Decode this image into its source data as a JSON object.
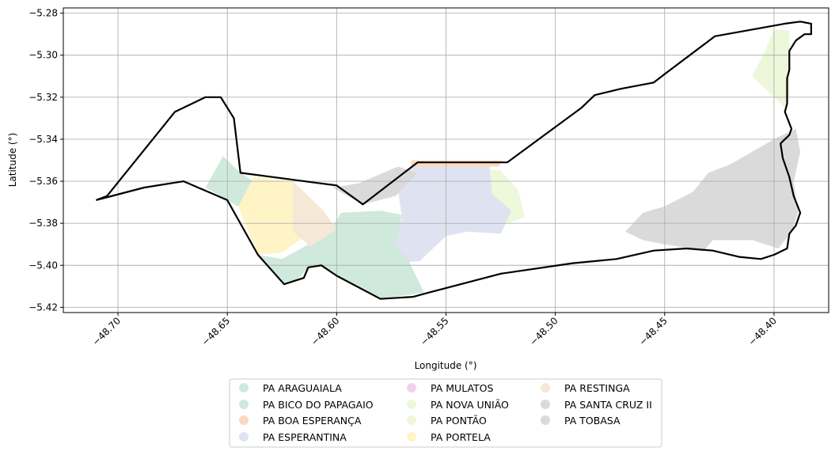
{
  "chart_data": {
    "type": "map",
    "xlabel": "Longitude (°)",
    "ylabel": "Latitude (°)",
    "xlim": [
      -48.725,
      -48.375
    ],
    "ylim": [
      -5.4225,
      -5.2775
    ],
    "grid": true,
    "x_ticks": [
      {
        "value": -48.7,
        "label": "−48.70"
      },
      {
        "value": -48.65,
        "label": "−48.65"
      },
      {
        "value": -48.6,
        "label": "−48.60"
      },
      {
        "value": -48.55,
        "label": "−48.55"
      },
      {
        "value": -48.5,
        "label": "−48.50"
      },
      {
        "value": -48.45,
        "label": "−48.45"
      },
      {
        "value": -48.4,
        "label": "−48.40"
      }
    ],
    "y_ticks": [
      {
        "value": -5.28,
        "label": "−5.28"
      },
      {
        "value": -5.3,
        "label": "−5.30"
      },
      {
        "value": -5.32,
        "label": "−5.32"
      },
      {
        "value": -5.34,
        "label": "−5.34"
      },
      {
        "value": -5.36,
        "label": "−5.36"
      },
      {
        "value": -5.38,
        "label": "−5.38"
      },
      {
        "value": -5.4,
        "label": "−5.40"
      },
      {
        "value": -5.42,
        "label": "−5.42"
      }
    ],
    "legend_position": "bottom-center",
    "legend": [
      {
        "label": "PA ARAGUAIALA",
        "color": "#cfeadd"
      },
      {
        "label": "PA BICO DO PAPAGAIO",
        "color": "#cfeadd"
      },
      {
        "label": "PA BOA ESPERANÇA",
        "color": "#fbd9c0"
      },
      {
        "label": "PA ESPERANTINA",
        "color": "#dfe3f1"
      },
      {
        "label": "PA MULATOS",
        "color": "#f2d1eb"
      },
      {
        "label": "PA NOVA UNIÃO",
        "color": "#edf7da"
      },
      {
        "label": "PA PONTÃO",
        "color": "#eef8da"
      },
      {
        "label": "PA PORTELA",
        "color": "#fff4c6"
      },
      {
        "label": "PA RESTINGA",
        "color": "#f6e8d6"
      },
      {
        "label": "PA SANTA CRUZ II",
        "color": "#dadada"
      },
      {
        "label": "PA TOBASA",
        "color": "#dadada"
      }
    ],
    "boundary": [
      [
        -48.71,
        -5.369
      ],
      [
        -48.705,
        -5.367
      ],
      [
        -48.674,
        -5.327
      ],
      [
        -48.66,
        -5.32
      ],
      [
        -48.653,
        -5.32
      ],
      [
        -48.647,
        -5.33
      ],
      [
        -48.644,
        -5.356
      ],
      [
        -48.6,
        -5.362
      ],
      [
        -48.588,
        -5.371
      ],
      [
        -48.563,
        -5.351
      ],
      [
        -48.522,
        -5.351
      ],
      [
        -48.488,
        -5.325
      ],
      [
        -48.482,
        -5.319
      ],
      [
        -48.47,
        -5.316
      ],
      [
        -48.455,
        -5.313
      ],
      [
        -48.45,
        -5.309
      ],
      [
        -48.427,
        -5.291
      ],
      [
        -48.395,
        -5.285
      ],
      [
        -48.388,
        -5.284
      ],
      [
        -48.383,
        -5.285
      ],
      [
        -48.383,
        -5.29
      ],
      [
        -48.386,
        -5.29
      ],
      [
        -48.39,
        -5.293
      ],
      [
        -48.393,
        -5.298
      ],
      [
        -48.393,
        -5.307
      ],
      [
        -48.394,
        -5.311
      ],
      [
        -48.394,
        -5.323
      ],
      [
        -48.395,
        -5.327
      ],
      [
        -48.392,
        -5.335
      ],
      [
        -48.393,
        -5.338
      ],
      [
        -48.397,
        -5.342
      ],
      [
        -48.396,
        -5.349
      ],
      [
        -48.393,
        -5.358
      ],
      [
        -48.391,
        -5.367
      ],
      [
        -48.388,
        -5.375
      ],
      [
        -48.39,
        -5.381
      ],
      [
        -48.393,
        -5.385
      ],
      [
        -48.394,
        -5.392
      ],
      [
        -48.4,
        -5.395
      ],
      [
        -48.406,
        -5.397
      ],
      [
        -48.416,
        -5.396
      ],
      [
        -48.428,
        -5.393
      ],
      [
        -48.44,
        -5.392
      ],
      [
        -48.455,
        -5.393
      ],
      [
        -48.472,
        -5.397
      ],
      [
        -48.492,
        -5.399
      ],
      [
        -48.525,
        -5.404
      ],
      [
        -48.558,
        -5.413
      ],
      [
        -48.565,
        -5.415
      ],
      [
        -48.58,
        -5.416
      ],
      [
        -48.6,
        -5.405
      ],
      [
        -48.607,
        -5.4
      ],
      [
        -48.613,
        -5.401
      ],
      [
        -48.615,
        -5.406
      ],
      [
        -48.618,
        -5.407
      ],
      [
        -48.624,
        -5.409
      ],
      [
        -48.636,
        -5.395
      ],
      [
        -48.65,
        -5.369
      ],
      [
        -48.67,
        -5.36
      ],
      [
        -48.688,
        -5.363
      ],
      [
        -48.71,
        -5.369
      ]
    ],
    "regions": [
      {
        "legend_index": 9,
        "color": "#dadada",
        "points": [
          [
            -48.437,
            -5.365
          ],
          [
            -48.43,
            -5.356
          ],
          [
            -48.42,
            -5.352
          ],
          [
            -48.4,
            -5.34
          ],
          [
            -48.39,
            -5.335
          ],
          [
            -48.388,
            -5.346
          ],
          [
            -48.391,
            -5.36
          ],
          [
            -48.389,
            -5.375
          ],
          [
            -48.392,
            -5.384
          ],
          [
            -48.398,
            -5.392
          ],
          [
            -48.41,
            -5.388
          ],
          [
            -48.428,
            -5.388
          ],
          [
            -48.432,
            -5.393
          ],
          [
            -48.45,
            -5.39
          ],
          [
            -48.46,
            -5.388
          ],
          [
            -48.468,
            -5.384
          ],
          [
            -48.46,
            -5.375
          ],
          [
            -48.45,
            -5.372
          ]
        ]
      },
      {
        "legend_index": 5,
        "color": "#edf7da",
        "points": [
          [
            -48.405,
            -5.3
          ],
          [
            -48.4,
            -5.288
          ],
          [
            -48.393,
            -5.288
          ],
          [
            -48.393,
            -5.3
          ],
          [
            -48.393,
            -5.32
          ],
          [
            -48.395,
            -5.325
          ],
          [
            -48.402,
            -5.318
          ],
          [
            -48.41,
            -5.31
          ]
        ]
      },
      {
        "legend_index": 6,
        "color": "#eef8da",
        "points": [
          [
            -48.532,
            -5.354
          ],
          [
            -48.525,
            -5.355
          ],
          [
            -48.517,
            -5.364
          ],
          [
            -48.514,
            -5.377
          ],
          [
            -48.522,
            -5.38
          ],
          [
            -48.528,
            -5.37
          ]
        ]
      },
      {
        "legend_index": 3,
        "color": "#dfe3f1",
        "points": [
          [
            -48.566,
            -5.353
          ],
          [
            -48.53,
            -5.353
          ],
          [
            -48.529,
            -5.366
          ],
          [
            -48.52,
            -5.374
          ],
          [
            -48.525,
            -5.385
          ],
          [
            -48.54,
            -5.384
          ],
          [
            -48.55,
            -5.386
          ],
          [
            -48.557,
            -5.393
          ],
          [
            -48.562,
            -5.398
          ],
          [
            -48.573,
            -5.399
          ],
          [
            -48.576,
            -5.391
          ],
          [
            -48.57,
            -5.378
          ],
          [
            -48.572,
            -5.364
          ]
        ]
      },
      {
        "legend_index": 2,
        "color": "#fbd9c0",
        "points": [
          [
            -48.566,
            -5.35
          ],
          [
            -48.524,
            -5.35
          ],
          [
            -48.526,
            -5.353
          ],
          [
            -48.566,
            -5.353
          ]
        ]
      },
      {
        "legend_index": 1,
        "color": "#cfeadd",
        "points": [
          [
            -48.625,
            -5.397
          ],
          [
            -48.604,
            -5.385
          ],
          [
            -48.598,
            -5.375
          ],
          [
            -48.58,
            -5.374
          ],
          [
            -48.57,
            -5.376
          ],
          [
            -48.573,
            -5.39
          ],
          [
            -48.567,
            -5.398
          ],
          [
            -48.56,
            -5.413
          ],
          [
            -48.58,
            -5.416
          ],
          [
            -48.6,
            -5.405
          ],
          [
            -48.607,
            -5.4
          ],
          [
            -48.613,
            -5.401
          ],
          [
            -48.618,
            -5.407
          ],
          [
            -48.624,
            -5.409
          ],
          [
            -48.636,
            -5.395
          ]
        ]
      },
      {
        "legend_index": 0,
        "color": "#cfeadd",
        "points": [
          [
            -48.66,
            -5.363
          ],
          [
            -48.652,
            -5.348
          ],
          [
            -48.644,
            -5.356
          ],
          [
            -48.638,
            -5.36
          ],
          [
            -48.645,
            -5.372
          ],
          [
            -48.65,
            -5.369
          ]
        ]
      },
      {
        "legend_index": 7,
        "color": "#fff4c6",
        "points": [
          [
            -48.645,
            -5.372
          ],
          [
            -48.638,
            -5.358
          ],
          [
            -48.62,
            -5.36
          ],
          [
            -48.618,
            -5.375
          ],
          [
            -48.613,
            -5.385
          ],
          [
            -48.625,
            -5.394
          ],
          [
            -48.636,
            -5.395
          ]
        ]
      },
      {
        "legend_index": 8,
        "color": "#f6e8d6",
        "points": [
          [
            -48.62,
            -5.36
          ],
          [
            -48.606,
            -5.374
          ],
          [
            -48.6,
            -5.383
          ],
          [
            -48.612,
            -5.391
          ],
          [
            -48.62,
            -5.384
          ]
        ]
      },
      {
        "legend_index": 10,
        "color": "#dadada",
        "points": [
          [
            -48.602,
            -5.363
          ],
          [
            -48.588,
            -5.371
          ],
          [
            -48.573,
            -5.367
          ],
          [
            -48.563,
            -5.356
          ],
          [
            -48.572,
            -5.353
          ],
          [
            -48.59,
            -5.361
          ]
        ]
      }
    ]
  }
}
